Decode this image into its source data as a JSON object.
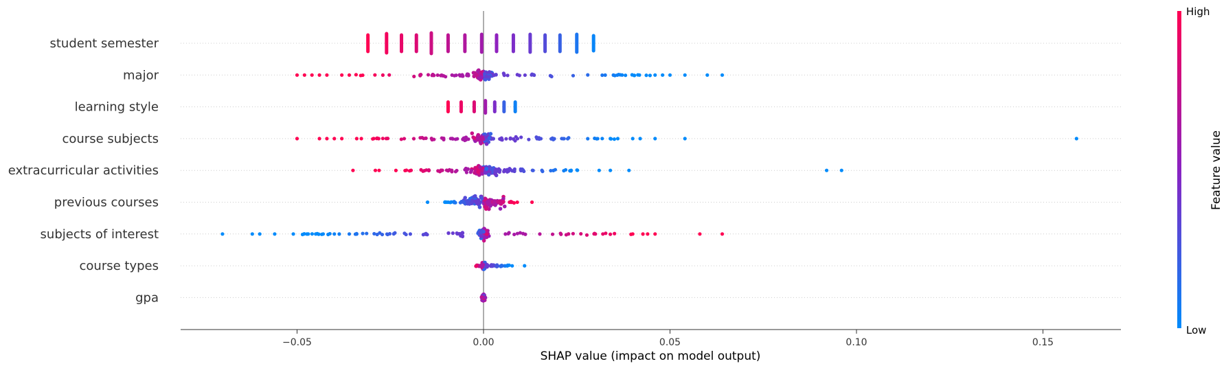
{
  "chart_data": {
    "type": "scatter",
    "subtype": "shap-beeswarm",
    "xlabel": "SHAP value (impact on model output)",
    "x_ticks": [
      -0.05,
      0.0,
      0.05,
      0.1,
      0.15
    ],
    "x_tick_labels": [
      "−0.05",
      "0.00",
      "0.05",
      "0.10",
      "0.15"
    ],
    "xlim": [
      -0.081,
      0.171
    ],
    "grid": "dotted horizontal row lines",
    "colorbar": {
      "label": "Feature value",
      "high_label": "High",
      "low_label": "Low",
      "high_color": "#ff0052",
      "mid_color": "#8a22c2",
      "low_color": "#008bfb"
    },
    "features": [
      {
        "name": "student semester",
        "style": "columns",
        "columns": [
          {
            "x": -0.031,
            "v": 1.0,
            "h": 12
          },
          {
            "x": -0.026,
            "v": 0.95,
            "h": 14
          },
          {
            "x": -0.022,
            "v": 0.9,
            "h": 12
          },
          {
            "x": -0.018,
            "v": 0.85,
            "h": 12
          },
          {
            "x": -0.014,
            "v": 0.78,
            "h": 15
          },
          {
            "x": -0.0095,
            "v": 0.72,
            "h": 12
          },
          {
            "x": -0.005,
            "v": 0.66,
            "h": 12
          },
          {
            "x": -0.0005,
            "v": 0.6,
            "h": 13
          },
          {
            "x": 0.0035,
            "v": 0.52,
            "h": 12
          },
          {
            "x": 0.008,
            "v": 0.45,
            "h": 12
          },
          {
            "x": 0.0125,
            "v": 0.38,
            "h": 13
          },
          {
            "x": 0.0165,
            "v": 0.3,
            "h": 12
          },
          {
            "x": 0.0205,
            "v": 0.2,
            "h": 12
          },
          {
            "x": 0.025,
            "v": 0.1,
            "h": 13
          },
          {
            "x": 0.0295,
            "v": 0.03,
            "h": 11
          }
        ]
      },
      {
        "name": "major",
        "style": "cloud",
        "spread": [
          -0.05,
          0.064
        ],
        "core_width": 0.004,
        "core_height": 11,
        "left_value": "high",
        "right_value": "low",
        "outliers": [
          -0.05,
          -0.048,
          -0.046,
          -0.044,
          -0.042,
          -0.038,
          -0.036,
          0.046,
          0.048,
          0.05,
          0.054,
          0.06,
          0.064
        ]
      },
      {
        "name": "learning style",
        "style": "columns",
        "columns": [
          {
            "x": -0.0095,
            "v": 1.0,
            "h": 7
          },
          {
            "x": -0.006,
            "v": 0.92,
            "h": 7
          },
          {
            "x": -0.0025,
            "v": 0.85,
            "h": 7
          },
          {
            "x": 0.0005,
            "v": 0.6,
            "h": 9
          },
          {
            "x": 0.003,
            "v": 0.45,
            "h": 7
          },
          {
            "x": 0.0055,
            "v": 0.2,
            "h": 7
          },
          {
            "x": 0.0085,
            "v": 0.05,
            "h": 7
          }
        ]
      },
      {
        "name": "course subjects",
        "style": "cloud",
        "spread": [
          -0.05,
          0.054
        ],
        "core_width": 0.004,
        "core_height": 11,
        "left_value": "high",
        "right_value": "low",
        "outliers": [
          -0.05,
          -0.044,
          -0.042,
          -0.04,
          -0.038,
          -0.034,
          0.034,
          0.036,
          0.04,
          0.042,
          0.046,
          0.054,
          0.159
        ]
      },
      {
        "name": "extracurricular activities",
        "style": "cloud",
        "spread": [
          -0.035,
          0.039
        ],
        "core_width": 0.006,
        "core_height": 12,
        "left_value": "high",
        "right_value": "low",
        "outliers": [
          -0.035,
          -0.029,
          -0.028,
          0.031,
          0.034,
          0.039,
          0.092,
          0.096
        ]
      },
      {
        "name": "previous courses",
        "style": "cloud",
        "spread": [
          -0.015,
          0.013
        ],
        "core_width": 0.009,
        "core_height": 15,
        "left_value": "low",
        "right_value": "high",
        "outliers": [
          -0.015,
          0.013
        ]
      },
      {
        "name": "subjects of interest",
        "style": "cloud",
        "spread": [
          -0.07,
          0.064
        ],
        "core_width": 0.002,
        "core_height": 12,
        "left_value": "low",
        "right_value": "high",
        "outliers": [
          -0.07,
          -0.062,
          -0.06,
          -0.056,
          -0.051,
          -0.047,
          -0.045,
          -0.043,
          -0.04,
          -0.036,
          -0.034,
          0.03,
          0.032,
          0.04,
          0.044,
          0.046,
          0.058,
          0.064
        ]
      },
      {
        "name": "course types",
        "style": "cloud",
        "spread": [
          -0.003,
          0.011
        ],
        "core_width": 0.0008,
        "core_height": 7,
        "left_value": "high",
        "right_value": "low",
        "outliers": [
          0.005,
          0.011
        ]
      },
      {
        "name": "gpa",
        "style": "cloud",
        "spread": [
          -0.0008,
          0.0008
        ],
        "core_width": 0.0005,
        "core_height": 6,
        "left_value": "mixed",
        "right_value": "mixed",
        "outliers": []
      }
    ]
  }
}
